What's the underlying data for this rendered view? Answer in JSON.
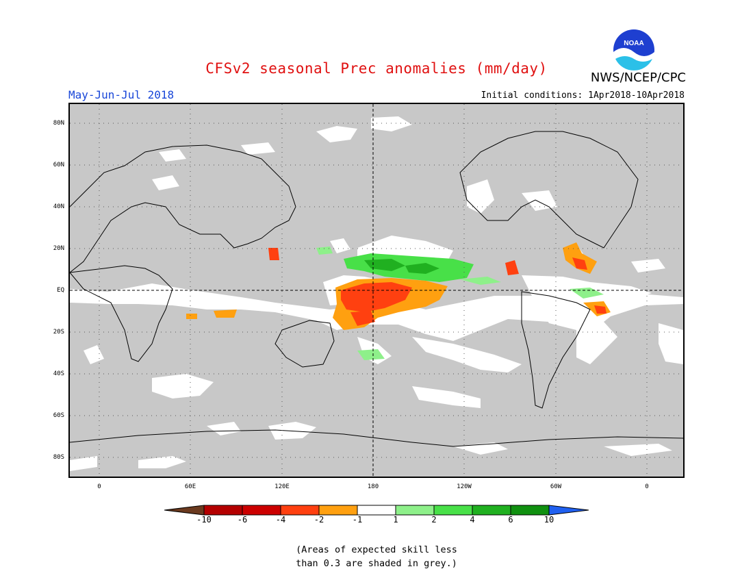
{
  "header": {
    "title": "CFSv2 seasonal Prec anomalies (mm/day)",
    "period": "May-Jun-Jul 2018",
    "initial_conditions": "Initial conditions: 1Apr2018-10Apr2018",
    "agency": "NWS/NCEP/CPC",
    "logo_text": "NOAA"
  },
  "map": {
    "lat_ticks": [
      "80N",
      "60N",
      "40N",
      "20N",
      "EQ",
      "20S",
      "40S",
      "60S",
      "80S"
    ],
    "lon_ticks": [
      "0",
      "60E",
      "120E",
      "180",
      "120W",
      "60W",
      "0"
    ]
  },
  "colorbar": {
    "labels": [
      "-10",
      "-6",
      "-4",
      "-2",
      "-1",
      "1",
      "2",
      "4",
      "6",
      "10"
    ],
    "colors": [
      "#6b3a1f",
      "#b40000",
      "#cc0000",
      "#ff4010",
      "#ffa010",
      "#ffffff",
      "#8ef08a",
      "#48e048",
      "#20b020",
      "#109010",
      "#2060f0"
    ]
  },
  "footnote": {
    "line1": "(Areas of expected skill less",
    "line2": "than 0.3 are shaded in grey.)"
  }
}
